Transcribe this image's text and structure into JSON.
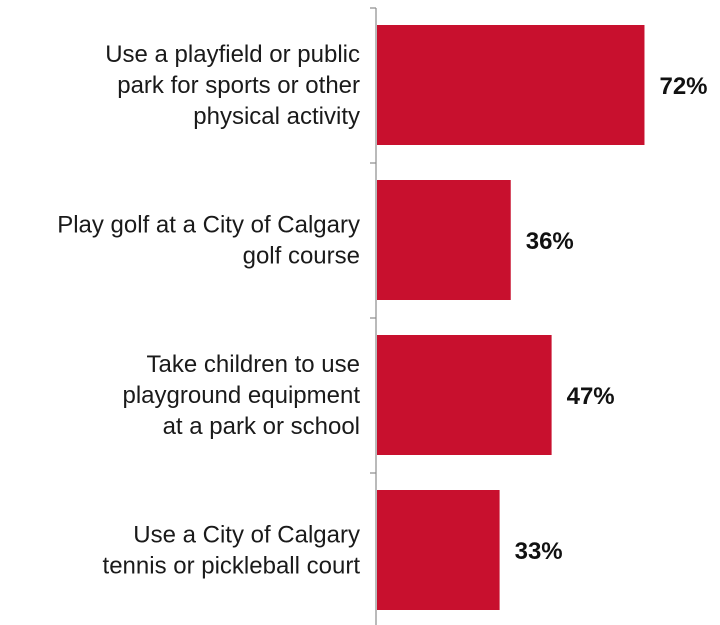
{
  "chart_data": {
    "type": "bar",
    "orientation": "horizontal",
    "categories": [
      "Use a playfield or public park for sports or other physical activity",
      "Play golf at a City of Calgary golf course",
      "Take children to use playground equipment at a park or school",
      "Use a City of Calgary tennis or pickleball court"
    ],
    "category_lines": [
      [
        "Use a playfield or public",
        "park for sports or other",
        "physical activity"
      ],
      [
        "Play golf at a City of Calgary",
        "golf course"
      ],
      [
        "Take children to use",
        "playground equipment",
        "at a park or school"
      ],
      [
        "Use a City of Calgary",
        "tennis or pickleball court"
      ]
    ],
    "values": [
      72,
      36,
      47,
      33
    ],
    "value_labels": [
      "72%",
      "36%",
      "47%",
      "33%"
    ],
    "xlim": [
      0,
      100
    ],
    "bar_color": "#c8102e",
    "axis_color": "#8c8c8c",
    "grid": false,
    "legend": "none"
  }
}
